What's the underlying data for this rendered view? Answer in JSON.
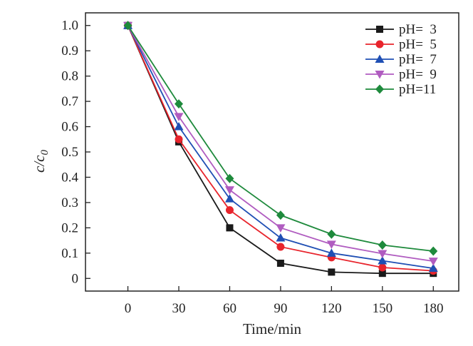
{
  "chart_data": {
    "type": "line",
    "xlabel": "Time/min",
    "ylabel_main": "c/c",
    "ylabel_sub": "0",
    "x": [
      0,
      30,
      60,
      90,
      120,
      150,
      180
    ],
    "xticks": [
      0,
      30,
      60,
      90,
      120,
      150,
      180
    ],
    "xtick_labels": [
      "0",
      "30",
      "60",
      "90",
      "120",
      "150",
      "180"
    ],
    "yticks": [
      0,
      0.1,
      0.2,
      0.3,
      0.4,
      0.5,
      0.6,
      0.7,
      0.8,
      0.9,
      1.0
    ],
    "ytick_labels": [
      "0",
      "0.1",
      "0.2",
      "0.3",
      "0.4",
      "0.5",
      "0.6",
      "0.7",
      "0.8",
      "0.9",
      "1.0"
    ],
    "xlim": [
      -25,
      195
    ],
    "ylim": [
      -0.05,
      1.05
    ],
    "grid": false,
    "legend_position": "top-right",
    "series": [
      {
        "name": "pH=  3",
        "color": "#1a1a1a",
        "marker": "square",
        "values": [
          1.0,
          0.54,
          0.2,
          0.06,
          0.025,
          0.02,
          0.02
        ]
      },
      {
        "name": "pH=  5",
        "color": "#e8242c",
        "marker": "circle",
        "values": [
          1.0,
          0.55,
          0.27,
          0.125,
          0.083,
          0.043,
          0.03
        ]
      },
      {
        "name": "pH=  7",
        "color": "#1f4fb4",
        "marker": "triangle-up",
        "values": [
          1.0,
          0.6,
          0.315,
          0.16,
          0.1,
          0.07,
          0.04
        ]
      },
      {
        "name": "pH=  9",
        "color": "#b05cc0",
        "marker": "triangle-down",
        "values": [
          1.0,
          0.64,
          0.35,
          0.2,
          0.135,
          0.098,
          0.068
        ]
      },
      {
        "name": "pH=11",
        "color": "#1e8a3c",
        "marker": "diamond",
        "values": [
          1.0,
          0.69,
          0.395,
          0.25,
          0.175,
          0.132,
          0.108
        ]
      }
    ]
  }
}
